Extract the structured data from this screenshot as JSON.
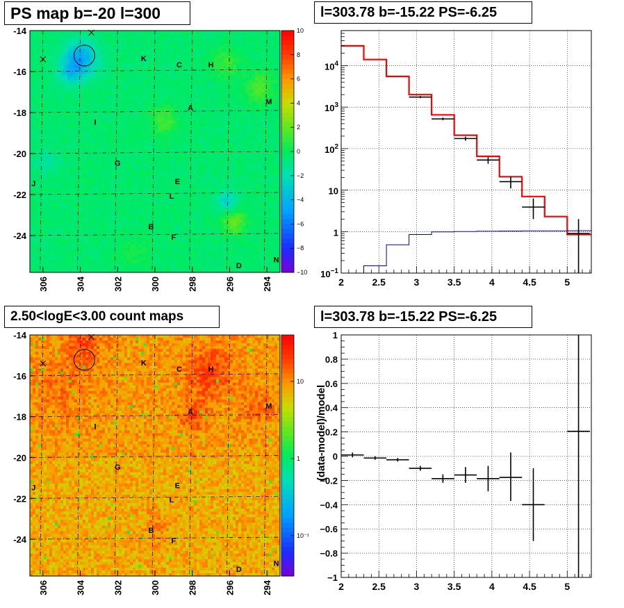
{
  "panels": {
    "top_left_title": "PS map b=-20 l=300",
    "top_right_title": "l=303.78 b=-15.22 PS=-6.25",
    "bottom_left_title": "2.50<logE<3.00 count maps",
    "bottom_right_title": "l=303.78 b=-15.22 PS=-6.25"
  },
  "colors": {
    "model_red": "#ff0000",
    "background_blue": "#0000cc",
    "data_black": "#000000"
  },
  "chart_data": [
    {
      "id": "ps_map",
      "type": "heatmap",
      "title": "PS map b=-20 l=300",
      "xlabel": "",
      "ylabel": "",
      "x_reversed": true,
      "xlim": [
        293.3,
        306.7
      ],
      "ylim": [
        -25.8,
        -14.0
      ],
      "x_ticks": [
        "306",
        "304",
        "302",
        "300",
        "298",
        "296",
        "294"
      ],
      "x_tick_values": [
        306,
        304,
        302,
        300,
        298,
        296,
        294
      ],
      "y_ticks": [
        "-14",
        "-16",
        "-18",
        "-20",
        "-22",
        "-24"
      ],
      "y_tick_values": [
        -14,
        -16,
        -18,
        -20,
        -22,
        -24
      ],
      "colorbar": {
        "scale": "linear",
        "range": [
          -10,
          10
        ],
        "ticks": [
          "10",
          "8",
          "6",
          "4",
          "2",
          "0",
          "−2",
          "−4",
          "−6",
          "−8",
          "−10"
        ]
      },
      "grid": true,
      "circle": {
        "l": 303.78,
        "b": -15.22
      },
      "cross_markers": [
        {
          "l": 303.4,
          "b": -14.1
        },
        {
          "l": 306.0,
          "b": -15.4
        }
      ],
      "source_labels": [
        {
          "text": "K",
          "l": 300.6,
          "b": -15.5
        },
        {
          "text": "C",
          "l": 298.7,
          "b": -15.8
        },
        {
          "text": "H",
          "l": 297.0,
          "b": -15.8
        },
        {
          "text": "M",
          "l": 293.9,
          "b": -17.6
        },
        {
          "text": "A",
          "l": 298.1,
          "b": -17.9
        },
        {
          "text": "I",
          "l": 303.2,
          "b": -18.6
        },
        {
          "text": "G",
          "l": 302.0,
          "b": -20.6
        },
        {
          "text": "J",
          "l": 306.5,
          "b": -21.6
        },
        {
          "text": "E",
          "l": 298.8,
          "b": -21.5
        },
        {
          "text": "L",
          "l": 299.1,
          "b": -22.2
        },
        {
          "text": "B",
          "l": 300.2,
          "b": -23.7
        },
        {
          "text": "F",
          "l": 299.0,
          "b": -24.2
        },
        {
          "text": "N",
          "l": 293.5,
          "b": -25.3
        },
        {
          "text": "D",
          "l": 295.5,
          "b": -25.6
        }
      ]
    },
    {
      "id": "spectrum",
      "type": "line",
      "title": "l=303.78 b=-15.22 PS=-6.25",
      "xlabel": "",
      "ylabel": "",
      "xlim": [
        2,
        5.32
      ],
      "y_scale": "log",
      "ylim": [
        0.1,
        70000
      ],
      "x_ticks": [
        "2",
        "2.5",
        "3",
        "3.5",
        "4",
        "4.5",
        "5"
      ],
      "y_ticks": [
        "10^-1",
        "1",
        "10",
        "10^2",
        "10^3",
        "10^4"
      ],
      "grid": true,
      "series": [
        {
          "style": "step",
          "color": "#ff0000",
          "bin_edges": [
            2.0,
            2.3,
            2.6,
            2.9,
            3.2,
            3.5,
            3.8,
            4.1,
            4.4,
            4.7,
            5.0,
            5.32
          ],
          "values": [
            30000,
            14000,
            5500,
            2000,
            650,
            210,
            65,
            21,
            7,
            2.3,
            0.85
          ]
        },
        {
          "style": "step",
          "color": "#0000cc",
          "bin_edges": [
            2.0,
            2.3,
            2.6,
            2.9,
            3.2,
            3.5,
            3.8,
            4.1,
            4.4,
            4.7,
            5.0,
            5.32
          ],
          "values": [
            0.1,
            0.15,
            0.48,
            0.85,
            0.98,
            1.0,
            1.02,
            1.03,
            1.04,
            1.04,
            1.05
          ]
        },
        {
          "style": "errorbars",
          "color": "#000000",
          "points": [
            {
              "x": 3.05,
              "xerr": 0.15,
              "y": 1750,
              "ylo": 1650,
              "yhi": 1850
            },
            {
              "x": 3.35,
              "xerr": 0.15,
              "y": 520,
              "ylo": 480,
              "yhi": 560
            },
            {
              "x": 3.65,
              "xerr": 0.15,
              "y": 175,
              "ylo": 155,
              "yhi": 195
            },
            {
              "x": 3.95,
              "xerr": 0.15,
              "y": 53,
              "ylo": 43,
              "yhi": 63
            },
            {
              "x": 4.25,
              "xerr": 0.15,
              "y": 16,
              "ylo": 11,
              "yhi": 21
            },
            {
              "x": 4.55,
              "xerr": 0.15,
              "y": 3.9,
              "ylo": 2.0,
              "yhi": 6.3
            },
            {
              "x": 5.15,
              "xerr": 0.15,
              "y": 0.9,
              "ylo": 0.1,
              "yhi": 2.0
            }
          ]
        }
      ]
    },
    {
      "id": "count_map",
      "type": "heatmap",
      "title": "2.50<logE<3.00 count maps",
      "xlabel": "",
      "ylabel": "",
      "x_reversed": true,
      "xlim": [
        293.3,
        306.7
      ],
      "ylim": [
        -25.8,
        -14.0
      ],
      "x_ticks": [
        "306",
        "304",
        "302",
        "300",
        "298",
        "296",
        "294"
      ],
      "x_tick_values": [
        306,
        304,
        302,
        300,
        298,
        296,
        294
      ],
      "y_ticks": [
        "-14",
        "-16",
        "-18",
        "-20",
        "-22",
        "-24"
      ],
      "y_tick_values": [
        -14,
        -16,
        -18,
        -20,
        -22,
        -24
      ],
      "colorbar": {
        "scale": "log",
        "range": [
          0.03,
          40
        ],
        "ticks": [
          "10",
          "1",
          "10⁻¹"
        ]
      },
      "grid": true,
      "circle": {
        "l": 303.78,
        "b": -15.22
      },
      "cross_markers": [
        {
          "l": 303.4,
          "b": -14.1
        },
        {
          "l": 306.0,
          "b": -15.4
        }
      ],
      "source_labels": [
        {
          "text": "K",
          "l": 300.6,
          "b": -15.5
        },
        {
          "text": "C",
          "l": 298.7,
          "b": -15.8
        },
        {
          "text": "H",
          "l": 297.0,
          "b": -15.8
        },
        {
          "text": "M",
          "l": 293.9,
          "b": -17.6
        },
        {
          "text": "A",
          "l": 298.1,
          "b": -17.9
        },
        {
          "text": "I",
          "l": 303.2,
          "b": -18.6
        },
        {
          "text": "G",
          "l": 302.0,
          "b": -20.6
        },
        {
          "text": "J",
          "l": 306.5,
          "b": -21.6
        },
        {
          "text": "E",
          "l": 298.8,
          "b": -21.5
        },
        {
          "text": "L",
          "l": 299.1,
          "b": -22.2
        },
        {
          "text": "B",
          "l": 300.2,
          "b": -23.7
        },
        {
          "text": "F",
          "l": 299.0,
          "b": -24.2
        },
        {
          "text": "N",
          "l": 293.5,
          "b": -25.3
        },
        {
          "text": "D",
          "l": 295.5,
          "b": -25.6
        }
      ]
    },
    {
      "id": "residuals",
      "type": "scatter",
      "title": "l=303.78 b=-15.22 PS=-6.25",
      "xlabel": "",
      "ylabel": "(data-model)/model",
      "xlim": [
        2,
        5.32
      ],
      "ylim": [
        -1,
        1
      ],
      "x_ticks": [
        "2",
        "2.5",
        "3",
        "3.5",
        "4",
        "4.5",
        "5"
      ],
      "y_ticks": [
        "1",
        "0.8",
        "0.6",
        "0.4",
        "0.2",
        "0",
        "−0.2",
        "−0.4",
        "−0.6",
        "−0.8",
        "−1"
      ],
      "grid": true,
      "series": [
        {
          "style": "errorbars",
          "color": "#000000",
          "points": [
            {
              "x": 2.15,
              "xerr": 0.15,
              "y": 0.01,
              "ylo": -0.01,
              "yhi": 0.03
            },
            {
              "x": 2.45,
              "xerr": 0.15,
              "y": -0.015,
              "ylo": -0.03,
              "yhi": 0.0
            },
            {
              "x": 2.75,
              "xerr": 0.15,
              "y": -0.03,
              "ylo": -0.045,
              "yhi": -0.015
            },
            {
              "x": 3.05,
              "xerr": 0.15,
              "y": -0.1,
              "ylo": -0.12,
              "yhi": -0.08
            },
            {
              "x": 3.35,
              "xerr": 0.15,
              "y": -0.185,
              "ylo": -0.22,
              "yhi": -0.15
            },
            {
              "x": 3.65,
              "xerr": 0.15,
              "y": -0.155,
              "ylo": -0.22,
              "yhi": -0.09
            },
            {
              "x": 3.95,
              "xerr": 0.15,
              "y": -0.185,
              "ylo": -0.29,
              "yhi": -0.08
            },
            {
              "x": 4.25,
              "xerr": 0.15,
              "y": -0.175,
              "ylo": -0.37,
              "yhi": 0.03
            },
            {
              "x": 4.55,
              "xerr": 0.15,
              "y": -0.4,
              "ylo": -0.7,
              "yhi": -0.1
            },
            {
              "x": 5.15,
              "xerr": 0.15,
              "y": 0.205,
              "ylo": -1.0,
              "yhi": 1.0
            }
          ]
        }
      ]
    }
  ]
}
